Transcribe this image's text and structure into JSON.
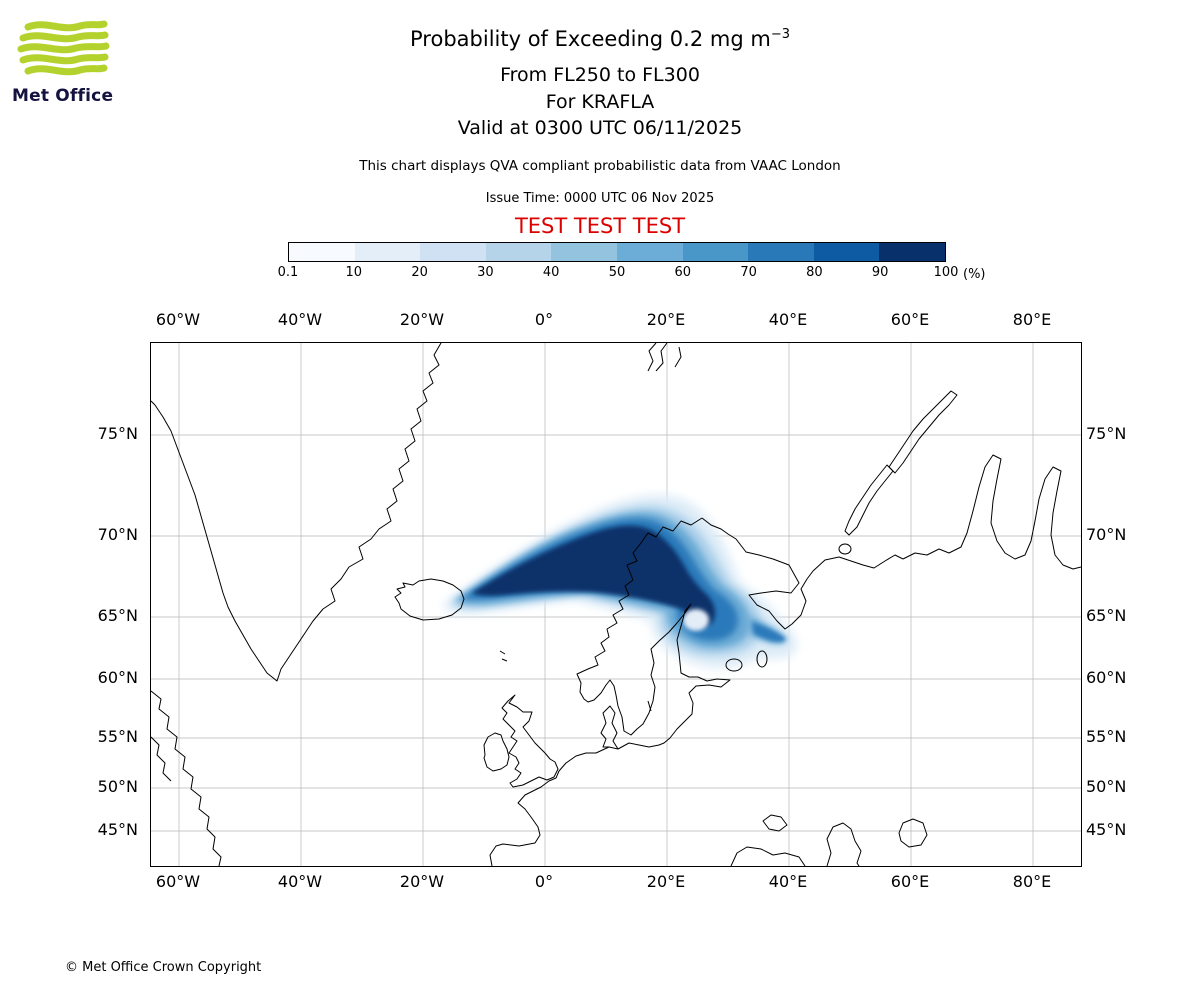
{
  "colors": {
    "test_red": "#dd0000",
    "logo_green": "#b4d22d",
    "logo_text_navy": "#14123f",
    "grid_gray": "#b5b5b5"
  },
  "header": {
    "logo_label": "Met Office",
    "title_main": "Probability of Exceeding 0.2 mg m",
    "title_exp": "−3",
    "line2": "From FL250 to FL300",
    "line3": "For KRAFLA",
    "line4": "Valid at 0300 UTC 06/11/2025",
    "note": "This chart displays QVA compliant probabilistic data from VAAC London",
    "issue": "Issue Time: 0000 UTC 06 Nov 2025",
    "test": "TEST TEST TEST"
  },
  "legend": {
    "ticks": [
      "0.1",
      "10",
      "20",
      "30",
      "40",
      "50",
      "60",
      "70",
      "80",
      "90",
      "100"
    ],
    "unit": "(%)",
    "colors": [
      "#f7fbff",
      "#e3eef8",
      "#cfe1f2",
      "#b5d4e9",
      "#93c3de",
      "#6badd6",
      "#4996c8",
      "#2979b9",
      "#0e5aa3",
      "#08306b"
    ]
  },
  "map": {
    "lon_ticks": [
      "60°W",
      "40°W",
      "20°W",
      "0°",
      "20°E",
      "40°E",
      "60°E",
      "80°E"
    ],
    "lat_ticks": [
      "75°N",
      "70°N",
      "65°N",
      "60°N",
      "55°N",
      "50°N",
      "45°N"
    ]
  },
  "footer": {
    "copyright": "© Met Office Crown Copyright"
  },
  "chart_data": {
    "type": "heatmap",
    "title": "Probability of Exceeding 0.2 mg m⁻³",
    "layer": "FL250 to FL300",
    "volcano": "KRAFLA",
    "valid_time": "0300 UTC 06/11/2025",
    "issue_time": "0000 UTC 06 Nov 2025",
    "source": "QVA compliant probabilistic data from VAAC London",
    "colorbar_unit": "%",
    "colorbar_breaks": [
      0.1,
      10,
      20,
      30,
      40,
      50,
      60,
      70,
      80,
      90,
      100
    ],
    "projection": "mercator-like, North Atlantic / Europe",
    "lon_axis": {
      "ticks_deg": [
        -60,
        -40,
        -20,
        0,
        20,
        40,
        60,
        80
      ],
      "labels": [
        "60°W",
        "40°W",
        "20°W",
        "0°",
        "20°E",
        "40°E",
        "60°E",
        "80°E"
      ]
    },
    "lat_axis": {
      "ticks_deg": [
        75,
        70,
        65,
        60,
        55,
        50,
        45
      ],
      "labels": [
        "75°N",
        "70°N",
        "65°N",
        "60°N",
        "55°N",
        "50°N",
        "45°N"
      ]
    },
    "plume": {
      "origin": "Krafla, Iceland (approx. 65.7°N 16.8°W)",
      "extent": "Plume extends ENE from Iceland across the Norwegian Sea to northern Norway (~70-72°N, 0-20°E), then curves SE over Finland/NW Russia to ~35°E, forming a ring-shaped lobe with a low-probability hole over central Finland (~64-66°N, 26-30°E)",
      "max_probability_band": "90-100% along the core band from eastern Iceland to northern Scandinavia",
      "min_shown": "0.1% (lightest fringe)"
    }
  }
}
